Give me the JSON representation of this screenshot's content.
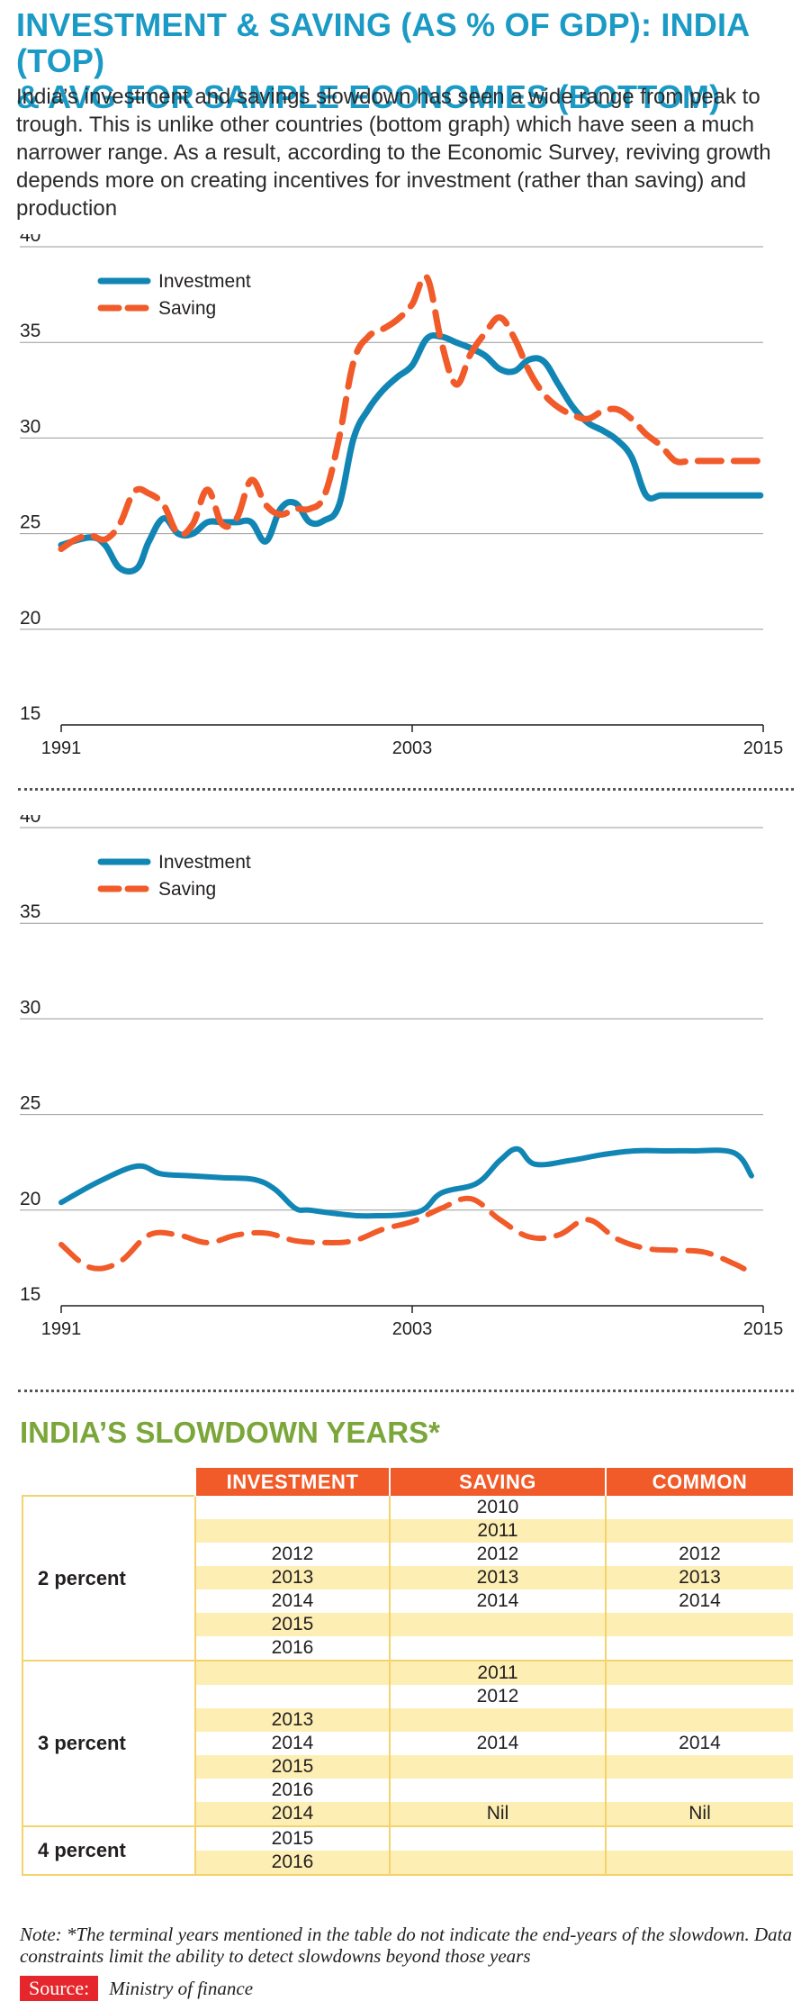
{
  "title_lines": [
    "INVESTMENT & SAVING (AS % OF GDP): INDIA (TOP)",
    "& AVG FOR SAMPLE ECONOMIES (BOTTOM)"
  ],
  "subtitle": "India’s investment and savings slowdown has seen a wide range from peak to trough. This is unlike other countries (bottom graph) which have seen a much narrower range. As a result, according to the Economic Survey, reviving growth depends more on creating incentives for investment (rather than saving) and production",
  "colors": {
    "title": "#1a9ac4",
    "investment": "#1186b5",
    "saving": "#f15a29",
    "table_header": "#f15a29",
    "table_band": "#fdeeb3",
    "table_title": "#7aa63a",
    "source_label_bg": "#e5262c"
  },
  "chart_data": [
    {
      "type": "line",
      "title": "India",
      "xlabel": "",
      "ylabel": "",
      "xlim": [
        1991,
        2015
      ],
      "ylim": [
        15,
        40
      ],
      "yticks": [
        15,
        20,
        25,
        30,
        35,
        40
      ],
      "xticks": [
        1991,
        2003,
        2015
      ],
      "grid": true,
      "legend": "top-left",
      "series": [
        {
          "name": "Investment",
          "style": "solid",
          "x": [
            1991,
            1992,
            1992.5,
            1993,
            1993.6,
            1994,
            1994.5,
            1995,
            1995.5,
            1996,
            1996.5,
            1997,
            1997.5,
            1998,
            1998.5,
            1999,
            1999.5,
            2000,
            2000.5,
            2001,
            2001.5,
            2002,
            2002.5,
            2003,
            2003.5,
            2004,
            2004.5,
            2005,
            2005.5,
            2006,
            2006.5,
            2007,
            2007.5,
            2008,
            2008.5,
            2009,
            2009.5,
            2010,
            2010.5,
            2011,
            2011.5,
            2012,
            2012.5,
            2013,
            2013.5,
            2014,
            2014.5,
            2014.9
          ],
          "y": [
            24.4,
            24.8,
            24.4,
            23.2,
            23.2,
            24.6,
            25.8,
            25.0,
            25.0,
            25.6,
            25.6,
            25.6,
            25.6,
            24.6,
            26.3,
            26.6,
            25.6,
            25.7,
            26.5,
            30.0,
            31.5,
            32.5,
            33.2,
            33.8,
            35.2,
            35.3,
            35.0,
            34.7,
            34.3,
            33.6,
            33.5,
            34.1,
            34.0,
            32.8,
            31.6,
            30.8,
            30.4,
            29.9,
            29.0,
            27.0,
            27.0,
            27.0,
            27.0,
            27.0,
            27.0,
            27.0,
            27.0,
            27.0
          ]
        },
        {
          "name": "Saving",
          "style": "dashed",
          "x": [
            1991,
            1991.5,
            1992,
            1992.5,
            1993,
            1993.5,
            1994,
            1994.5,
            1995,
            1995.5,
            1996,
            1996.5,
            1997,
            1997.5,
            1998,
            1998.5,
            1999,
            1999.5,
            2000,
            2000.5,
            2001,
            2001.5,
            2002,
            2002.5,
            2003,
            2003.5,
            2004,
            2004.5,
            2005,
            2005.5,
            2006,
            2006.5,
            2007,
            2007.5,
            2008,
            2008.5,
            2009,
            2009.5,
            2010,
            2010.5,
            2011,
            2011.5,
            2012,
            2012.5,
            2013,
            2013.5,
            2014,
            2014.5,
            2014.9
          ],
          "y": [
            24.2,
            24.7,
            24.9,
            24.7,
            25.5,
            27.2,
            27.1,
            26.5,
            25.0,
            25.5,
            27.3,
            25.5,
            25.8,
            27.8,
            26.5,
            26.0,
            26.3,
            26.3,
            27.0,
            30.0,
            34.0,
            35.3,
            35.7,
            36.2,
            37.0,
            38.4,
            35.0,
            32.8,
            34.4,
            35.5,
            36.3,
            35.2,
            33.5,
            32.3,
            31.6,
            31.2,
            31.0,
            31.4,
            31.5,
            31.0,
            30.2,
            29.6,
            28.8,
            28.8,
            28.8,
            28.8,
            28.8,
            28.8,
            28.8
          ]
        }
      ]
    },
    {
      "type": "line",
      "title": "Average for sample economies",
      "xlabel": "",
      "ylabel": "",
      "xlim": [
        1991,
        2015
      ],
      "ylim": [
        15,
        40
      ],
      "yticks": [
        15,
        20,
        25,
        30,
        35,
        40
      ],
      "xticks": [
        1991,
        2003,
        2015
      ],
      "grid": true,
      "legend": "top-left",
      "series": [
        {
          "name": "Investment",
          "style": "solid",
          "x": [
            1991,
            1992,
            1993,
            1994,
            1995,
            1996,
            1997,
            1998,
            1999,
            2000,
            2001,
            2002,
            2003,
            2004,
            2005,
            2006,
            2007,
            2008,
            2009,
            2010,
            2011,
            2012,
            2013,
            2014,
            2014.5
          ],
          "y": [
            20.4,
            21.5,
            22.3,
            21.9,
            21.8,
            21.7,
            21.6,
            21.1,
            20.1,
            20.0,
            19.8,
            19.7,
            19.9,
            20.9,
            21.4,
            22.6,
            23.2,
            22.4,
            22.6,
            22.9,
            23.1,
            23.1,
            23.1,
            23.0,
            21.8
          ],
          "x_plot": [
            1991,
            1992.3,
            1993.6,
            1994.4,
            1995.4,
            1996.5,
            1997.6,
            1998.3,
            1999.0,
            1999.5,
            2000.5,
            2001.5,
            2003.2,
            2004,
            2005.2,
            2006,
            2006.6,
            2007.2,
            2008.4,
            2009.5,
            2010.6,
            2011.8,
            2012.6,
            2014.0,
            2014.6
          ]
        },
        {
          "name": "Saving",
          "style": "dashed",
          "x": [
            1991,
            1992,
            1993,
            1994,
            1995,
            1996,
            1997,
            1998,
            1999,
            2000,
            2001,
            2002,
            2003,
            2004,
            2005,
            2006,
            2007,
            2008,
            2009,
            2010,
            2011,
            2012,
            2013,
            2014,
            2014.5
          ],
          "y": [
            18.2,
            17.0,
            17.3,
            18.7,
            18.7,
            18.3,
            18.7,
            18.8,
            18.4,
            18.3,
            18.4,
            19.0,
            19.4,
            20.1,
            20.6,
            19.5,
            18.6,
            18.7,
            19.5,
            18.5,
            18.0,
            17.9,
            17.8,
            17.2,
            16.8
          ]
        }
      ]
    }
  ],
  "table": {
    "title": "INDIA’S SLOWDOWN YEARS*",
    "headers": [
      "INVESTMENT",
      "SAVING",
      "COMMON"
    ],
    "groups": [
      {
        "label": "2 percent",
        "rows": [
          {
            "investment": "",
            "saving": "2010",
            "common": ""
          },
          {
            "investment": "",
            "saving": "2011",
            "common": ""
          },
          {
            "investment": "2012",
            "saving": "2012",
            "common": "2012"
          },
          {
            "investment": "2013",
            "saving": "2013",
            "common": "2013"
          },
          {
            "investment": "2014",
            "saving": "2014",
            "common": "2014"
          },
          {
            "investment": "2015",
            "saving": "",
            "common": ""
          },
          {
            "investment": "2016",
            "saving": "",
            "common": ""
          }
        ]
      },
      {
        "label": "3 percent",
        "rows": [
          {
            "investment": "",
            "saving": "2011",
            "common": ""
          },
          {
            "investment": "",
            "saving": "2012",
            "common": ""
          },
          {
            "investment": "2013",
            "saving": "",
            "common": ""
          },
          {
            "investment": "2014",
            "saving": "2014",
            "common": "2014"
          },
          {
            "investment": "2015",
            "saving": "",
            "common": ""
          },
          {
            "investment": "2016",
            "saving": "",
            "common": ""
          },
          {
            "investment": "2014",
            "saving": "Nil",
            "common": "Nil"
          }
        ]
      },
      {
        "label": "4 percent",
        "rows": [
          {
            "investment": "2015",
            "saving": "",
            "common": ""
          },
          {
            "investment": "2016",
            "saving": "",
            "common": ""
          }
        ]
      }
    ]
  },
  "note": "Note: *The terminal years mentioned in the table do not indicate the end-years of the slowdown. Data constraints limit the ability to detect slowdowns beyond those years",
  "source": {
    "label": "Source:",
    "text": "Ministry of finance"
  }
}
